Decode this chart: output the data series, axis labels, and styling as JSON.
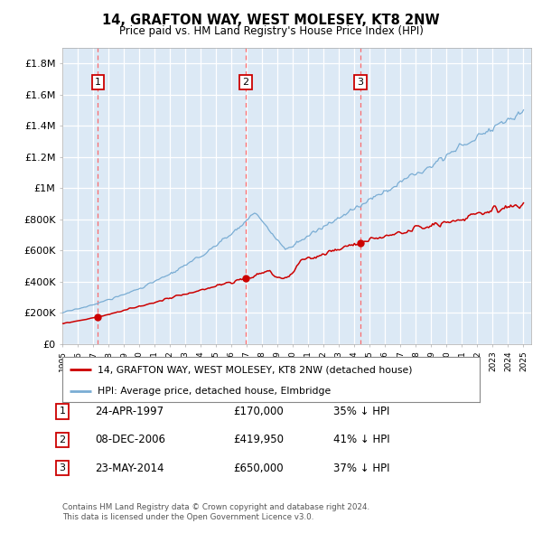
{
  "title": "14, GRAFTON WAY, WEST MOLESEY, KT8 2NW",
  "subtitle": "Price paid vs. HM Land Registry's House Price Index (HPI)",
  "background_color": "#dce9f5",
  "ylim": [
    0,
    1900000
  ],
  "yticks": [
    0,
    200000,
    400000,
    600000,
    800000,
    1000000,
    1200000,
    1400000,
    1600000,
    1800000
  ],
  "ytick_labels": [
    "£0",
    "£200K",
    "£400K",
    "£600K",
    "£800K",
    "£1M",
    "£1.2M",
    "£1.4M",
    "£1.6M",
    "£1.8M"
  ],
  "transactions": [
    {
      "date_num": 1997.3,
      "price": 170000,
      "label": "1",
      "pct": "35% ↓ HPI",
      "date_str": "24-APR-1997",
      "price_str": "£170,000"
    },
    {
      "date_num": 2006.93,
      "price": 419950,
      "label": "2",
      "pct": "41% ↓ HPI",
      "date_str": "08-DEC-2006",
      "price_str": "£419,950"
    },
    {
      "date_num": 2014.39,
      "price": 650000,
      "label": "3",
      "pct": "37% ↓ HPI",
      "date_str": "23-MAY-2014",
      "price_str": "£650,000"
    }
  ],
  "legend_line1": "14, GRAFTON WAY, WEST MOLESEY, KT8 2NW (detached house)",
  "legend_line2": "HPI: Average price, detached house, Elmbridge",
  "footer1": "Contains HM Land Registry data © Crown copyright and database right 2024.",
  "footer2": "This data is licensed under the Open Government Licence v3.0.",
  "red_line_color": "#cc0000",
  "blue_line_color": "#7aadd4",
  "vline_color": "#ff5555",
  "box_color": "#cc0000"
}
